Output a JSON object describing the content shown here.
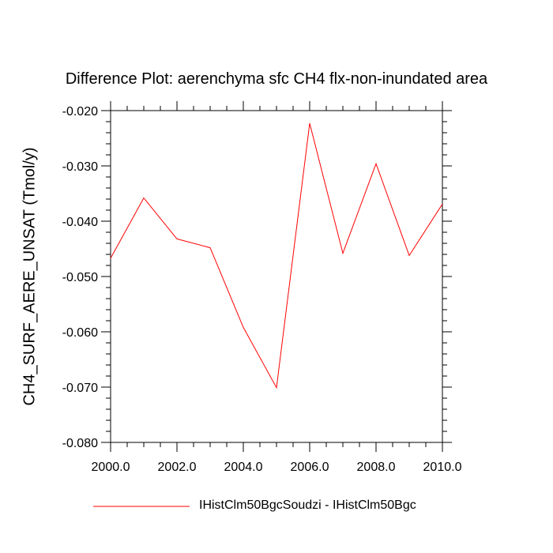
{
  "chart_data": {
    "type": "line",
    "title": "Difference Plot: aerenchyma sfc CH4 flx-non-inundated area",
    "ylabel": "CH4_SURF_AERE_UNSAT  (Tmol/y)",
    "xlabel": "",
    "xlim": [
      2000,
      2010
    ],
    "ylim": [
      -0.08,
      -0.02
    ],
    "x_ticks": [
      2000,
      2002,
      2004,
      2006,
      2008,
      2010
    ],
    "x_tick_labels": [
      "2000.0",
      "2002.0",
      "2004.0",
      "2006.0",
      "2008.0",
      "2010.0"
    ],
    "y_ticks": [
      -0.02,
      -0.03,
      -0.04,
      -0.05,
      -0.06,
      -0.07,
      -0.08
    ],
    "y_tick_labels": [
      "-0.020",
      "-0.030",
      "-0.040",
      "-0.050",
      "-0.060",
      "-0.070",
      "-0.080"
    ],
    "grid": false,
    "legend_position": "bottom",
    "series": [
      {
        "name": "IHistClm50BgcSoudzi - IHistClm50Bgc",
        "color": "#ff0000",
        "x": [
          2000,
          2001,
          2002,
          2003,
          2004,
          2005,
          2006,
          2007,
          2008,
          2009,
          2010
        ],
        "values": [
          -0.0467,
          -0.0358,
          -0.0432,
          -0.0448,
          -0.0592,
          -0.0701,
          -0.0223,
          -0.0458,
          -0.0296,
          -0.0462,
          -0.0369
        ]
      }
    ]
  }
}
